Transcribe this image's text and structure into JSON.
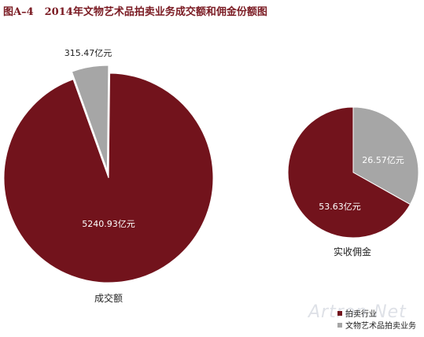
{
  "title": {
    "figure_no": "图A–4",
    "text": "2014年文物艺术品拍卖业务成交额和佣金份额图"
  },
  "colors": {
    "auction_industry": "#72131c",
    "cultural_auction": "#a6a6a6",
    "title": "#7a1a22"
  },
  "watermark": "Artron.Net",
  "chart_data": [
    {
      "type": "pie",
      "title": "成交额",
      "series": [
        {
          "name": "拍卖行业",
          "value": 5240.93,
          "label": "5240.93亿元"
        },
        {
          "name": "文物艺术品拍卖业务",
          "value": 315.47,
          "label": "315.47亿元",
          "exploded": true
        }
      ]
    },
    {
      "type": "pie",
      "title": "实收佣金",
      "series": [
        {
          "name": "拍卖行业",
          "value": 53.63,
          "label": "53.63亿元"
        },
        {
          "name": "文物艺术品拍卖业务",
          "value": 26.57,
          "label": "26.57亿元"
        }
      ]
    }
  ],
  "legend": [
    {
      "label": "拍卖行业",
      "color": "#72131c"
    },
    {
      "label": "文物艺术品拍卖业务",
      "color": "#a6a6a6"
    }
  ]
}
